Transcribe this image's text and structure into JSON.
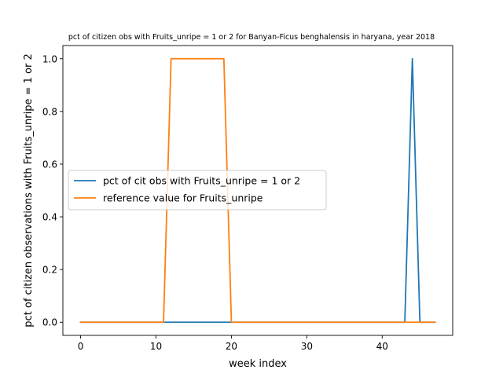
{
  "chart_data": {
    "type": "line",
    "title": "pct of citizen obs with Fruits_unripe = 1 or 2 for Banyan-Ficus benghalensis in haryana, year 2018",
    "xlabel": "week index",
    "ylabel": "pct of citizen observations with Fruits_unripe = 1 or 2",
    "xlim": [
      -2.35,
      49.35
    ],
    "ylim": [
      -0.05,
      1.05
    ],
    "xticks": [
      0,
      10,
      20,
      30,
      40
    ],
    "yticks": [
      0.0,
      0.2,
      0.4,
      0.6,
      0.8,
      1.0
    ],
    "xtick_labels": [
      "0",
      "10",
      "20",
      "30",
      "40"
    ],
    "ytick_labels": [
      "0.0",
      "0.2",
      "0.4",
      "0.6",
      "0.8",
      "1.0"
    ],
    "grid": false,
    "legend_position": "center-left",
    "series": [
      {
        "name": "pct of cit obs with Fruits_unripe = 1 or 2",
        "color": "#1f77b4",
        "x": [
          0,
          1,
          2,
          3,
          4,
          5,
          6,
          7,
          8,
          9,
          10,
          11,
          12,
          13,
          14,
          15,
          16,
          17,
          18,
          19,
          20,
          21,
          22,
          23,
          24,
          25,
          26,
          27,
          28,
          29,
          30,
          31,
          32,
          33,
          34,
          35,
          36,
          37,
          38,
          39,
          40,
          41,
          42,
          43,
          44,
          45,
          46,
          47
        ],
        "y": [
          0,
          0,
          0,
          0,
          0,
          0,
          0,
          0,
          0,
          0,
          0,
          0,
          0,
          0,
          0,
          0,
          0,
          0,
          0,
          0,
          0,
          0,
          0,
          0,
          0,
          0,
          0,
          0,
          0,
          0,
          0,
          0,
          0,
          0,
          0,
          0,
          0,
          0,
          0,
          0,
          0,
          0,
          0,
          0,
          1,
          0,
          0,
          0
        ]
      },
      {
        "name": "reference value for Fruits_unripe",
        "color": "#ff7f0e",
        "x": [
          0,
          1,
          2,
          3,
          4,
          5,
          6,
          7,
          8,
          9,
          10,
          11,
          12,
          13,
          14,
          15,
          16,
          17,
          18,
          19,
          20,
          21,
          22,
          23,
          24,
          25,
          26,
          27,
          28,
          29,
          30,
          31,
          32,
          33,
          34,
          35,
          36,
          37,
          38,
          39,
          40,
          41,
          42,
          43,
          44,
          45,
          46,
          47
        ],
        "y": [
          0,
          0,
          0,
          0,
          0,
          0,
          0,
          0,
          0,
          0,
          0,
          0,
          1,
          1,
          1,
          1,
          1,
          1,
          1,
          1,
          0,
          0,
          0,
          0,
          0,
          0,
          0,
          0,
          0,
          0,
          0,
          0,
          0,
          0,
          0,
          0,
          0,
          0,
          0,
          0,
          0,
          0,
          0,
          0,
          0,
          0,
          0,
          0
        ]
      }
    ]
  }
}
